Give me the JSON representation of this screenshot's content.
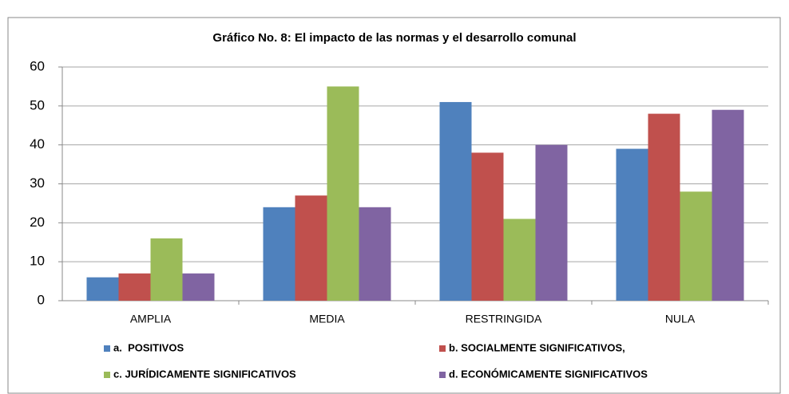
{
  "chart_data": {
    "type": "bar",
    "title": "Gráfico No. 8: El impacto de las normas y el desarrollo comunal",
    "categories": [
      "AMPLIA",
      "MEDIA",
      "RESTRINGIDA",
      "NULA"
    ],
    "series": [
      {
        "name": "a.  POSITIVOS",
        "color": "#4f81bd",
        "values": [
          6,
          24,
          51,
          39
        ]
      },
      {
        "name": "b. SOCIALMENTE SIGNIFICATIVOS,",
        "color": "#c0504d",
        "values": [
          7,
          27,
          38,
          48
        ]
      },
      {
        "name": "c. JURÍDICAMENTE SIGNIFICATIVOS",
        "color": "#9bbb59",
        "values": [
          16,
          55,
          21,
          28
        ]
      },
      {
        "name": "d. ECONÓMICAMENTE SIGNIFICATIVOS",
        "color": "#8064a2",
        "values": [
          7,
          24,
          40,
          49
        ]
      }
    ],
    "ylim": [
      0,
      60
    ],
    "yticks": [
      0,
      10,
      20,
      30,
      40,
      50,
      60
    ],
    "grid": true,
    "legend": "bottom"
  }
}
